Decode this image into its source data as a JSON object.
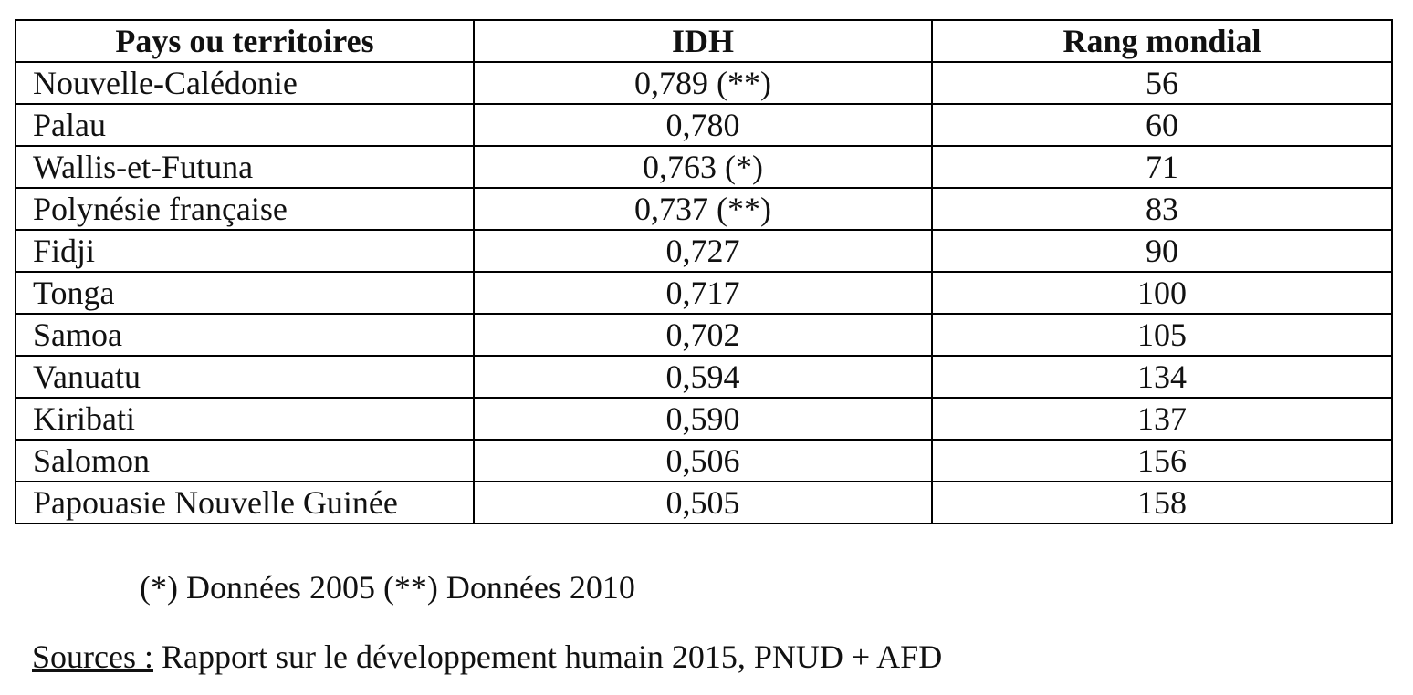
{
  "table": {
    "headers": [
      "Pays ou territoires",
      "IDH",
      "Rang mondial"
    ],
    "rows": [
      {
        "country": "Nouvelle-Calédonie",
        "idh": "0,789 (**)",
        "rank": "56"
      },
      {
        "country": "Palau",
        "idh": "0,780",
        "rank": "60"
      },
      {
        "country": "Wallis-et-Futuna",
        "idh": "0,763 (*)",
        "rank": "71"
      },
      {
        "country": "Polynésie française",
        "idh": "0,737 (**)",
        "rank": "83"
      },
      {
        "country": "Fidji",
        "idh": "0,727",
        "rank": "90"
      },
      {
        "country": "Tonga",
        "idh": "0,717",
        "rank": "100"
      },
      {
        "country": "Samoa",
        "idh": "0,702",
        "rank": "105"
      },
      {
        "country": "Vanuatu",
        "idh": "0,594",
        "rank": "134"
      },
      {
        "country": "Kiribati",
        "idh": "0,590",
        "rank": "137"
      },
      {
        "country": "Salomon",
        "idh": "0,506",
        "rank": "156"
      },
      {
        "country": "Papouasie Nouvelle Guinée",
        "idh": "0,505",
        "rank": "158"
      }
    ]
  },
  "note": "(*) Données 2005 (**) Données 2010",
  "sources": {
    "label": "Sources :",
    "text": " Rapport sur le développement humain 2015, PNUD + AFD"
  }
}
